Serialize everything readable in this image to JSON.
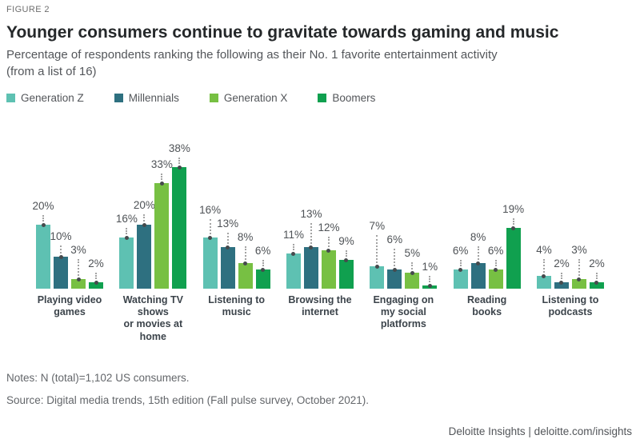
{
  "figure_label": "FIGURE 2",
  "title": "Younger consumers continue to gravitate towards gaming and music",
  "subtitle": {
    "line1": "Percentage of respondents ranking the following as their No. 1 favorite entertainment activity",
    "line2": "(from a list of 16)"
  },
  "legend": [
    {
      "label": "Generation Z",
      "color": "#5EC1B2"
    },
    {
      "label": "Millennials",
      "color": "#2E7080"
    },
    {
      "label": "Generation X",
      "color": "#77C043"
    },
    {
      "label": "Boomers",
      "color": "#10A04F"
    }
  ],
  "chart_data": {
    "type": "bar",
    "title": "Younger consumers continue to gravitate towards gaming and music",
    "subtitle": "Percentage of respondents ranking the following as their No. 1 favorite entertainment activity (from a list of 16)",
    "categories": [
      "Playing video games",
      "Watching TV shows or movies at home",
      "Listening to music",
      "Browsing the internet",
      "Engaging on my social platforms",
      "Reading books",
      "Listening to podcasts"
    ],
    "category_lines": [
      [
        "Playing video",
        "games"
      ],
      [
        "Watching TV",
        "shows",
        "or movies at",
        "home"
      ],
      [
        "Listening to",
        "music"
      ],
      [
        "Browsing the",
        "internet"
      ],
      [
        "Engaging on",
        "my social",
        "platforms"
      ],
      [
        "Reading",
        "books"
      ],
      [
        "Listening to",
        "podcasts"
      ]
    ],
    "series": [
      {
        "name": "Generation Z",
        "color": "#5EC1B2",
        "values": [
          20,
          16,
          16,
          11,
          7,
          6,
          4
        ]
      },
      {
        "name": "Millennials",
        "color": "#2E7080",
        "values": [
          10,
          20,
          13,
          13,
          6,
          8,
          2
        ]
      },
      {
        "name": "Generation X",
        "color": "#77C043",
        "values": [
          3,
          33,
          8,
          12,
          5,
          6,
          3
        ]
      },
      {
        "name": "Boomers",
        "color": "#10A04F",
        "values": [
          2,
          38,
          6,
          9,
          1,
          19,
          2
        ]
      }
    ],
    "value_suffix": "%",
    "ylim": [
      0,
      40
    ],
    "grid": false,
    "legend_position": "top",
    "leader_dot_color": "#464A4D",
    "leader_line_color": "#A3A3A3"
  },
  "notes": "Notes: N (total)=1,102 US consumers.",
  "source": "Source: Digital media trends, 15th edition (Fall pulse survey, October 2021).",
  "footer": "Deloitte Insights | deloitte.com/insights"
}
